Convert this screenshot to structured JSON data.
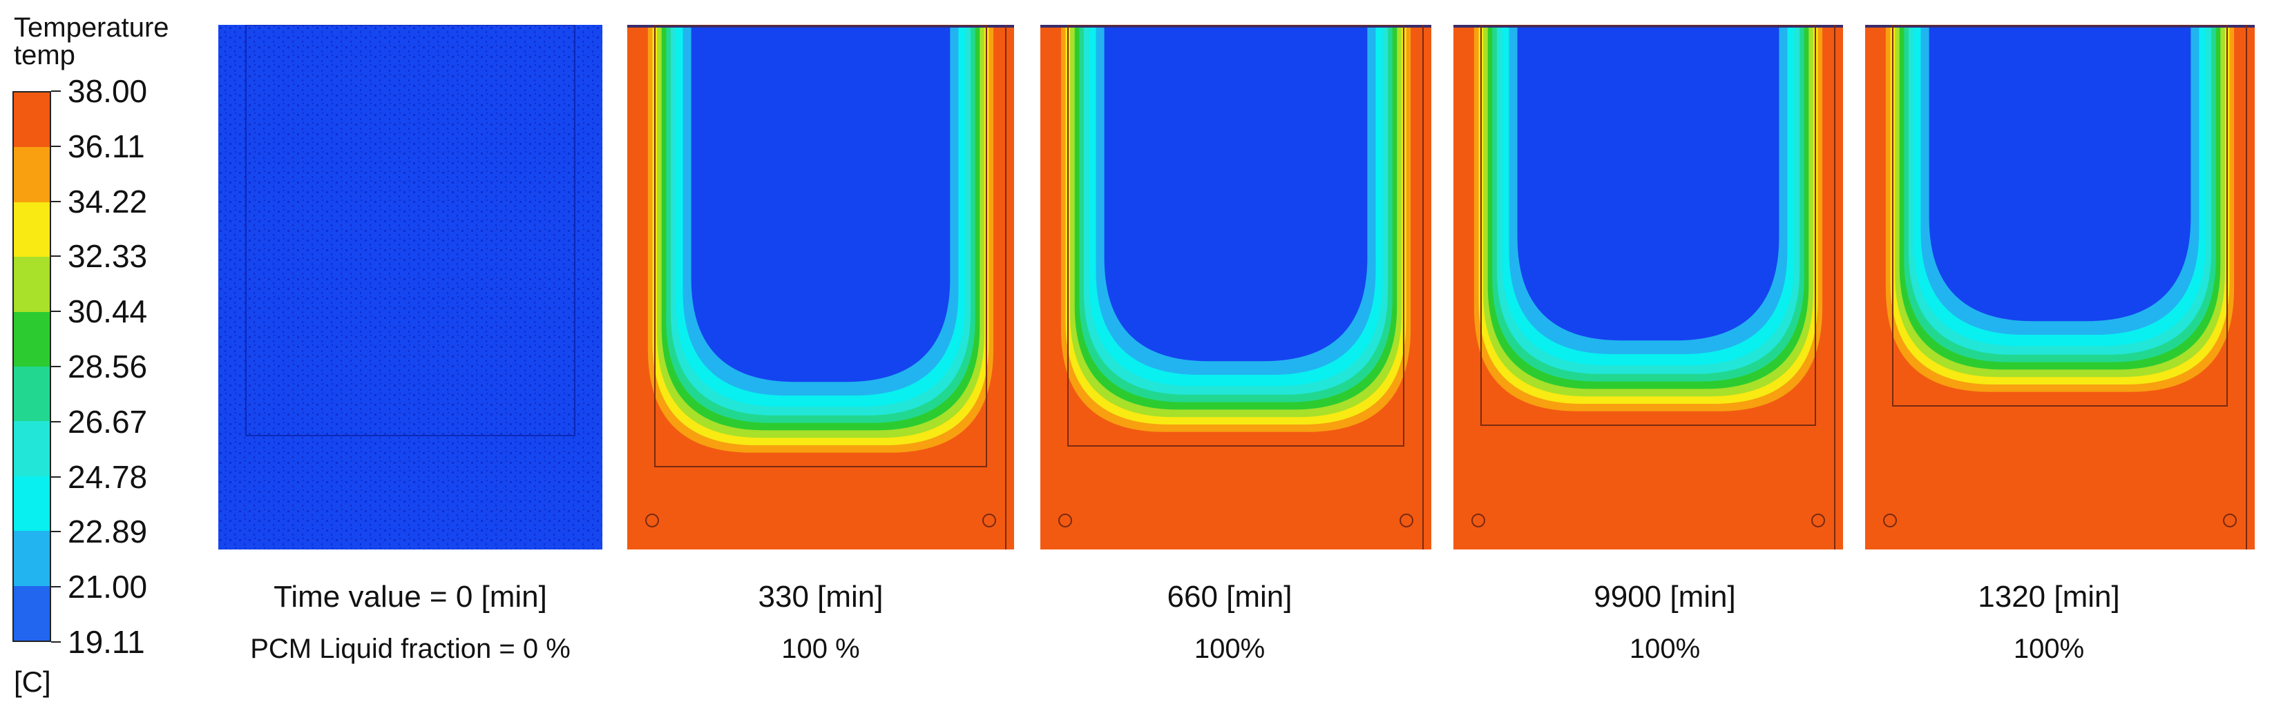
{
  "legend": {
    "title_line1": "Temperature",
    "title_line2": "temp",
    "unit": "[C]",
    "ticks": [
      "38.00",
      "36.11",
      "34.22",
      "32.33",
      "30.44",
      "28.56",
      "26.67",
      "24.78",
      "22.89",
      "21.00",
      "19.11"
    ],
    "colors": [
      "#f25a12",
      "#f8a010",
      "#f8ea12",
      "#a8e02a",
      "#2ccc30",
      "#22d890",
      "#22e6d8",
      "#08f0f0",
      "#22b4f0",
      "#2266f0",
      "#1444f0"
    ]
  },
  "panels": [
    {
      "time": "Time value = 0 [min]",
      "fraction": "PCM Liquid fraction = 0 %"
    },
    {
      "time": "330 [min]",
      "fraction": "100 %"
    },
    {
      "time": "660 [min]",
      "fraction": "100%"
    },
    {
      "time": "9900 [min]",
      "fraction": "100%"
    },
    {
      "time": "1320 [min]",
      "fraction": "100%"
    }
  ]
}
